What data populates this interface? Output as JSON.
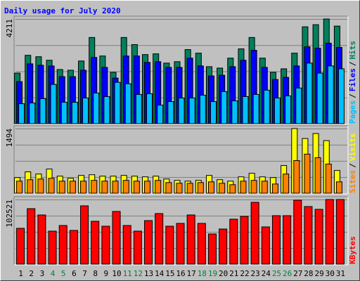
{
  "chart_data": [
    {
      "type": "bar",
      "title": "Daily usage for July 2020",
      "legend_separator": "/",
      "ylim": [
        0,
        4211
      ],
      "yticks": [
        4211
      ],
      "series": [
        {
          "name": "Hits",
          "color": "#00805c",
          "values": [
            2034,
            2750,
            2693,
            2550,
            2177,
            2149,
            2521,
            3467,
            2722,
            2063,
            3467,
            3180,
            2779,
            2808,
            2435,
            2493,
            2980,
            2836,
            2292,
            2235,
            2636,
            3008,
            3467,
            2636,
            2063,
            2206,
            2836,
            3896,
            3982,
            4211,
            3925
          ]
        },
        {
          "name": "Files",
          "color": "#0000ff",
          "values": [
            1690,
            2407,
            2349,
            2321,
            1891,
            1891,
            2149,
            2664,
            2263,
            1834,
            2722,
            2722,
            2464,
            2493,
            2263,
            2263,
            2636,
            2321,
            1920,
            1948,
            2292,
            2550,
            2951,
            2263,
            1776,
            1862,
            2321,
            3094,
            3037,
            3237,
            3066
          ]
        },
        {
          "name": "Pages",
          "color": "#00c0ff",
          "values": [
            802,
            831,
            1003,
            1576,
            860,
            860,
            1031,
            1232,
            1089,
            1662,
            1604,
            1175,
            1203,
            745,
            888,
            1031,
            1031,
            1146,
            888,
            1289,
            917,
            1089,
            1175,
            1347,
            1031,
            1117,
            1433,
            2435,
            2034,
            2321,
            2206
          ]
        }
      ]
    },
    {
      "type": "bar",
      "ylim": [
        0,
        1494
      ],
      "yticks": [
        1494
      ],
      "series": [
        {
          "name": "Visits",
          "color": "#ffff00",
          "values": [
            361,
            493,
            443,
            558,
            394,
            345,
            411,
            427,
            394,
            394,
            411,
            394,
            378,
            394,
            328,
            296,
            279,
            296,
            411,
            312,
            279,
            378,
            460,
            378,
            361,
            640,
            1494,
            1264,
            1379,
            1215,
            525
          ]
        },
        {
          "name": "Sites",
          "color": "#ff8000",
          "values": [
            279,
            312,
            328,
            345,
            279,
            279,
            279,
            296,
            279,
            279,
            296,
            279,
            279,
            296,
            246,
            230,
            230,
            246,
            263,
            230,
            197,
            279,
            296,
            279,
            213,
            443,
            755,
            903,
            821,
            673,
            263
          ]
        }
      ]
    },
    {
      "type": "bar",
      "ylim": [
        0,
        102521
      ],
      "yticks": [
        102521
      ],
      "categories": [
        "1",
        "2",
        "3",
        "4",
        "5",
        "6",
        "7",
        "8",
        "9",
        "10",
        "11",
        "12",
        "13",
        "14",
        "15",
        "16",
        "17",
        "18",
        "19",
        "20",
        "21",
        "22",
        "23",
        "24",
        "25",
        "26",
        "27",
        "28",
        "29",
        "30",
        "31"
      ],
      "category_colors": [
        "#000000",
        "#000000",
        "#000000",
        "#008040",
        "#008040",
        "#000000",
        "#000000",
        "#000000",
        "#000000",
        "#000000",
        "#008040",
        "#008040",
        "#000000",
        "#000000",
        "#000000",
        "#000000",
        "#000000",
        "#008040",
        "#008040",
        "#000000",
        "#000000",
        "#000000",
        "#000000",
        "#000000",
        "#008040",
        "#008040",
        "#000000",
        "#000000",
        "#000000",
        "#000000",
        "#000000"
      ],
      "series": [
        {
          "name": "KBytes",
          "color": "#ff0000",
          "values": [
            56815,
            88040,
            78010,
            52377,
            61292,
            53491,
            92495,
            67978,
            60178,
            83580,
            61292,
            52377,
            69093,
            80237,
            60178,
            64635,
            78010,
            64635,
            47919,
            55720,
            71322,
            75779,
            98067,
            59064,
            76894,
            76894,
            101410,
            91381,
            86923,
            102521,
            102521
          ]
        }
      ]
    }
  ]
}
